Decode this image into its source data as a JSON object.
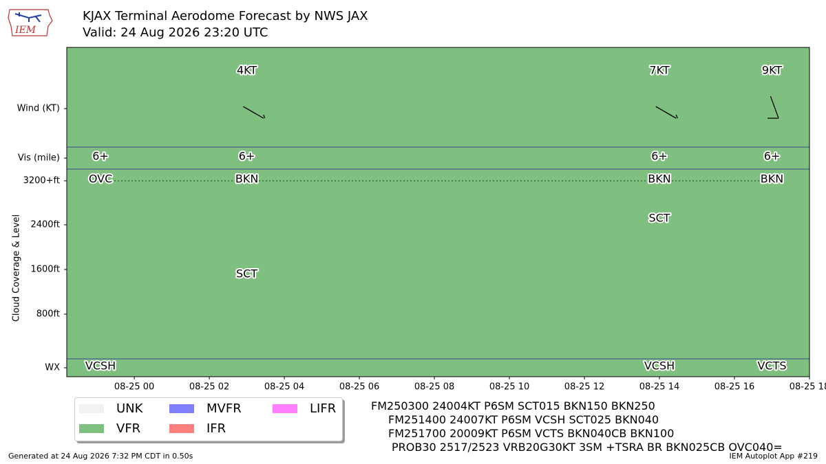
{
  "header": {
    "title_line1": "KJAX Terminal Aerodome Forecast by NWS JAX",
    "title_line2": "Valid: 24 Aug 2026 23:20 UTC",
    "logo_text": "IEM"
  },
  "chart_data": {
    "type": "table",
    "background_category": "VFR",
    "row_labels": [
      "Wind (KT)",
      "Vis (mile)",
      "3200+ft",
      "2400ft",
      "1600ft",
      "800ft",
      "WX"
    ],
    "ylabel": "Cloud Coverage & Level",
    "x_ticks": [
      "08-25 00",
      "08-25 02",
      "08-25 04",
      "08-25 06",
      "08-25 08",
      "08-25 10",
      "08-25 12",
      "08-25 14",
      "08-25 16",
      "08-25 18"
    ],
    "xlim_hours": [
      -1.8,
      18
    ],
    "periods": [
      {
        "time_hours": -0.9,
        "vis": "6+",
        "clouds": [
          {
            "cover": "OVC",
            "level_ft": 3200
          }
        ],
        "wx": "VCSH"
      },
      {
        "time_hours": 3.0,
        "wind_dir": 240,
        "wind_speed_kt": 4,
        "wind_label": "4KT",
        "vis": "6+",
        "clouds": [
          {
            "cover": "SCT",
            "level_ft": 1500
          },
          {
            "cover": "BKN",
            "level_ft": 3200
          }
        ],
        "wx": ""
      },
      {
        "time_hours": 14.0,
        "wind_dir": 240,
        "wind_speed_kt": 7,
        "wind_label": "7KT",
        "vis": "6+",
        "clouds": [
          {
            "cover": "SCT",
            "level_ft": 2500
          },
          {
            "cover": "BKN",
            "level_ft": 3200
          }
        ],
        "wx": "VCSH"
      },
      {
        "time_hours": 17.0,
        "wind_dir": 200,
        "wind_speed_kt": 9,
        "wind_label": "9KT",
        "vis": "6+",
        "clouds": [
          {
            "cover": "BKN",
            "level_ft": 3200
          }
        ],
        "wx": "VCTS"
      }
    ],
    "legend": [
      {
        "label": "UNK",
        "color": "#f2f2f2"
      },
      {
        "label": "VFR",
        "color": "#7fbf7f"
      },
      {
        "label": "MVFR",
        "color": "#7f7fff"
      },
      {
        "label": "IFR",
        "color": "#ff7f7f"
      },
      {
        "label": "LIFR",
        "color": "#ff7fff"
      }
    ],
    "colors": {
      "vfr_fill": "#7fbf7f",
      "separator": "#3f4c8f",
      "dotted_line": "#2e6b2e"
    }
  },
  "taf_text": [
    "FM250300 24004KT P6SM SCT015 BKN150 BKN250",
    "FM251400 24007KT P6SM VCSH SCT025 BKN040",
    "FM251700 20009KT P6SM VCTS BKN040CB BKN100",
    "PROB30 2517/2523 VRB20G30KT 3SM +TSRA BR BKN025CB OVC040="
  ],
  "footer": {
    "left": "Generated at 24 Aug 2026 7:32 PM CDT in 0.50s",
    "right": "IEM Autoplot App #219"
  }
}
